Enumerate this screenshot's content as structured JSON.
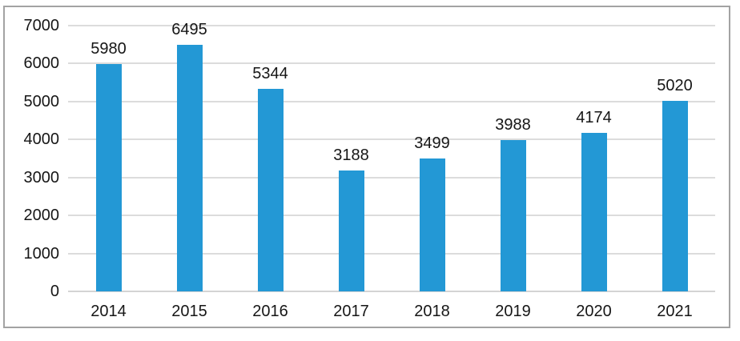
{
  "chart_data": {
    "type": "bar",
    "categories": [
      "2014",
      "2015",
      "2016",
      "2017",
      "2018",
      "2019",
      "2020",
      "2021"
    ],
    "values": [
      5980,
      6495,
      5344,
      3188,
      3499,
      3988,
      4174,
      5020
    ],
    "data_labels": [
      "5980",
      "6495",
      "5344",
      "3188",
      "3499",
      "3988",
      "4174",
      "5020"
    ],
    "title": "",
    "xlabel": "",
    "ylabel": "",
    "ylim": [
      0,
      7000
    ],
    "yticks": [
      0,
      1000,
      2000,
      3000,
      4000,
      5000,
      6000,
      7000
    ],
    "ytick_labels": [
      "0",
      "1000",
      "2000",
      "3000",
      "4000",
      "5000",
      "6000",
      "7000"
    ],
    "grid": true,
    "legend": "none",
    "show_data_labels": true
  },
  "colors": {
    "bar": "#2398d5",
    "gridline": "#dcdcdc",
    "axis_line": "#d4d4d4",
    "frame_border": "#a3a3a3",
    "text": "#161616",
    "background": "#ffffff"
  }
}
